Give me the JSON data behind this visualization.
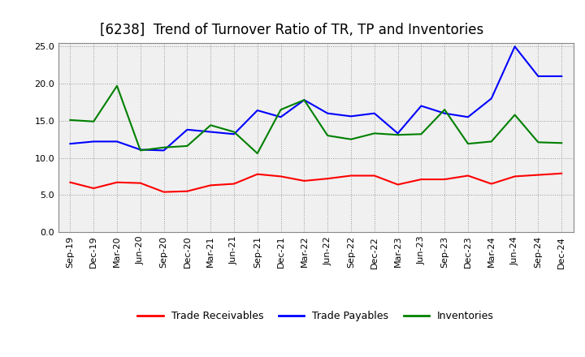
{
  "title": "[6238]  Trend of Turnover Ratio of TR, TP and Inventories",
  "x_labels": [
    "Sep-19",
    "Dec-19",
    "Mar-20",
    "Jun-20",
    "Sep-20",
    "Dec-20",
    "Mar-21",
    "Jun-21",
    "Sep-21",
    "Dec-21",
    "Mar-22",
    "Jun-22",
    "Sep-22",
    "Dec-22",
    "Mar-23",
    "Jun-23",
    "Sep-23",
    "Dec-23",
    "Mar-24",
    "Jun-24",
    "Sep-24",
    "Dec-24"
  ],
  "trade_receivables": [
    6.7,
    5.9,
    6.7,
    6.6,
    5.4,
    5.5,
    6.3,
    6.5,
    7.8,
    7.5,
    6.9,
    7.2,
    7.6,
    7.6,
    6.4,
    7.1,
    7.1,
    7.6,
    6.5,
    7.5,
    7.7,
    7.9
  ],
  "trade_payables": [
    11.9,
    12.2,
    12.2,
    11.1,
    11.0,
    13.8,
    13.5,
    13.2,
    16.4,
    15.5,
    17.8,
    16.0,
    15.6,
    16.0,
    13.3,
    17.0,
    16.0,
    15.5,
    18.0,
    25.0,
    21.0,
    21.0
  ],
  "inventories": [
    15.1,
    14.9,
    19.7,
    11.0,
    11.4,
    11.6,
    14.4,
    13.5,
    10.6,
    16.5,
    17.8,
    13.0,
    12.5,
    13.3,
    13.1,
    13.2,
    16.5,
    11.9,
    12.2,
    15.8,
    12.1,
    12.0
  ],
  "ylim": [
    0,
    25.5
  ],
  "yticks": [
    0.0,
    5.0,
    10.0,
    15.0,
    20.0,
    25.0
  ],
  "color_tr": "#ff0000",
  "color_tp": "#0000ff",
  "color_inv": "#008000",
  "bg_color": "#ffffff",
  "plot_bg_color": "#f0f0f0",
  "grid_color": "#999999",
  "title_fontsize": 12,
  "tick_fontsize": 8,
  "legend_labels": [
    "Trade Receivables",
    "Trade Payables",
    "Inventories"
  ]
}
